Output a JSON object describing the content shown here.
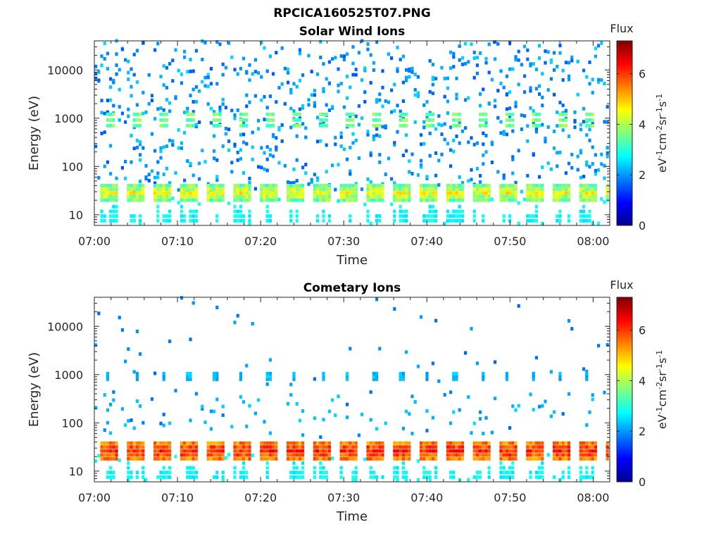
{
  "figure_title": "RPCICA160525T07.PNG",
  "colormap": [
    "#00008f",
    "#0000ff",
    "#0080ff",
    "#00ffff",
    "#80ff80",
    "#ffff00",
    "#ff8000",
    "#ff0000",
    "#800000"
  ],
  "background_color": "#ffffff",
  "chart_data": [
    {
      "type": "heatmap",
      "title": "Solar Wind Ions",
      "xlabel": "Time",
      "ylabel": "Energy (eV)",
      "y_scale": "log",
      "xlim": [
        "07:00",
        "08:02"
      ],
      "ylim": [
        6,
        40000
      ],
      "x_ticks": [
        "07:00",
        "07:10",
        "07:20",
        "07:30",
        "07:40",
        "07:50",
        "08:00"
      ],
      "y_ticks": [
        "10",
        "100",
        "1000",
        "10000"
      ],
      "colorbar": {
        "title": "Flux",
        "label": "eV-1cm-2sr-1s-1",
        "range": [
          0,
          7.3
        ],
        "ticks": [
          "0",
          "2",
          "4",
          "6"
        ]
      },
      "features": {
        "pulse_period_min": 3.2,
        "pulse_start_min": 0.6,
        "pulse_duration_min": 2.2,
        "low_energy_band": {
          "energy_range": [
            20,
            40
          ],
          "flux": [
            3,
            5
          ]
        },
        "mid_energy_band": {
          "energy_range": [
            700,
            1200
          ],
          "flux": [
            3,
            4
          ]
        },
        "high_energy_scatter": {
          "energy_range": [
            30,
            40000
          ],
          "flux": [
            1.5,
            2.5
          ]
        },
        "bottom_streaks": {
          "energy_range": [
            6,
            18
          ],
          "flux": [
            2.5,
            3
          ]
        }
      }
    },
    {
      "type": "heatmap",
      "title": "Cometary Ions",
      "xlabel": "Time",
      "ylabel": "Energy (eV)",
      "y_scale": "log",
      "xlim": [
        "07:00",
        "08:02"
      ],
      "ylim": [
        6,
        40000
      ],
      "x_ticks": [
        "07:00",
        "07:10",
        "07:20",
        "07:30",
        "07:40",
        "07:50",
        "08:00"
      ],
      "y_ticks": [
        "10",
        "100",
        "1000",
        "10000"
      ],
      "colorbar": {
        "title": "Flux",
        "label": "eV-1cm-2sr-1s-1",
        "range": [
          0,
          7.3
        ],
        "ticks": [
          "0",
          "2",
          "4",
          "6"
        ]
      },
      "features": {
        "pulse_period_min": 3.2,
        "pulse_start_min": 0.6,
        "pulse_duration_min": 2.2,
        "low_energy_band": {
          "energy_range": [
            18,
            38
          ],
          "flux": [
            5,
            6.6
          ]
        },
        "mid_energy_band": {
          "energy_range": [
            800,
            1050
          ],
          "flux": [
            2,
            2.5
          ]
        },
        "high_energy_scatter": {
          "energy_range": [
            50,
            40000
          ],
          "flux": [
            1.6,
            2.2
          ]
        },
        "bottom_streaks": {
          "energy_range": [
            6,
            16
          ],
          "flux": [
            2.5,
            3
          ]
        }
      }
    }
  ]
}
